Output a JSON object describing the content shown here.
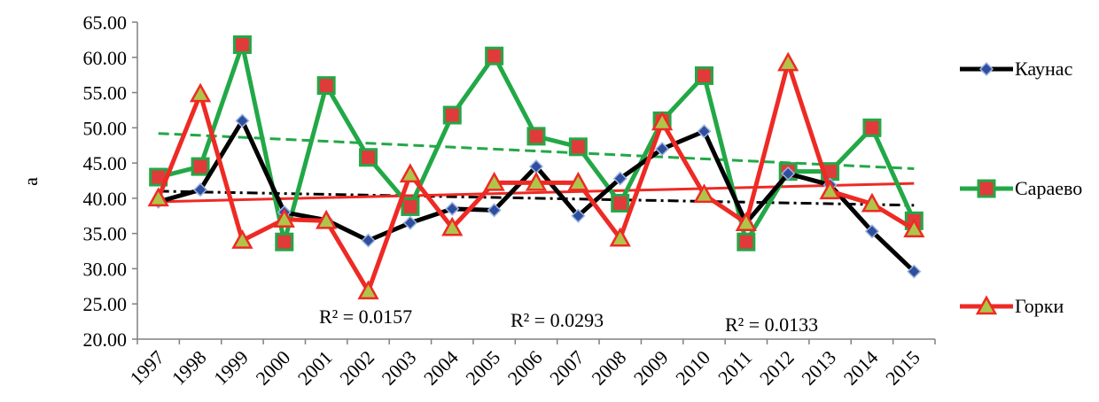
{
  "chart_data": {
    "type": "line",
    "title": "",
    "xlabel": "",
    "ylabel": "а",
    "categories": [
      "1997",
      "1998",
      "1999",
      "2000",
      "2001",
      "2002",
      "2003",
      "2004",
      "2005",
      "2006",
      "2007",
      "2008",
      "2009",
      "2010",
      "2011",
      "2012",
      "2013",
      "2014",
      "2015"
    ],
    "ylim": [
      20,
      65
    ],
    "yticks": [
      "20.00",
      "25.00",
      "30.00",
      "35.00",
      "40.00",
      "45.00",
      "50.00",
      "55.00",
      "60.00",
      "65.00"
    ],
    "grid": false,
    "legend_position": "right",
    "series": [
      {
        "name": "Каунас",
        "color": "#000000",
        "marker": "diamond",
        "marker_fill": "#2f4f9e",
        "values": [
          39.5,
          41.2,
          51.0,
          38.0,
          36.9,
          34.0,
          36.5,
          38.5,
          38.3,
          44.5,
          37.5,
          42.8,
          47.0,
          49.5,
          36.5,
          43.5,
          41.9,
          35.3,
          29.6
        ],
        "trend": {
          "start": 41.0,
          "end": 39.0,
          "style": "dash-dot",
          "color": "#000000"
        }
      },
      {
        "name": "Сараево",
        "color": "#22a846",
        "marker": "square",
        "marker_fill": "#e03b3b",
        "values": [
          43.0,
          44.5,
          61.8,
          33.8,
          56.0,
          45.8,
          38.8,
          51.8,
          60.2,
          48.8,
          47.3,
          39.3,
          51.0,
          57.4,
          33.8,
          43.8,
          43.8,
          50.0,
          36.8
        ],
        "trend": {
          "start": 49.2,
          "end": 44.2,
          "style": "dash",
          "color": "#22a846"
        }
      },
      {
        "name": "Горки",
        "color": "#ee2a24",
        "marker": "triangle",
        "marker_fill": "#b0c44a",
        "values": [
          40.0,
          54.8,
          34.0,
          37.0,
          36.8,
          26.8,
          43.4,
          35.8,
          42.2,
          42.2,
          42.2,
          34.3,
          50.8,
          40.5,
          36.5,
          59.2,
          41.0,
          39.2,
          35.6
        ],
        "trend": {
          "start": 39.5,
          "end": 42.1,
          "style": "solid",
          "color": "#ee2a24"
        }
      }
    ],
    "annotations": [
      "R² = 0.0157",
      "R² = 0.0293",
      "R² = 0.0133"
    ]
  }
}
